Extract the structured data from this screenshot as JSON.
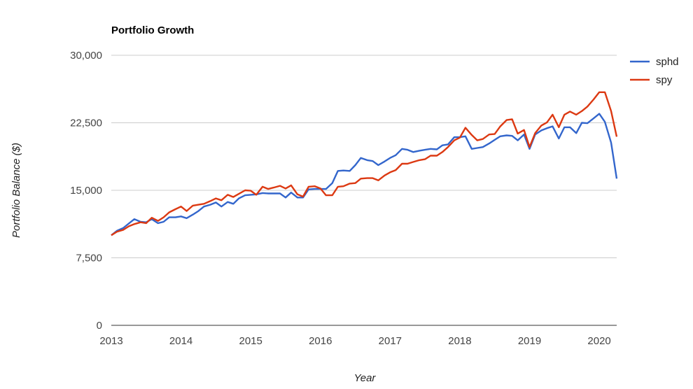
{
  "chart_data": {
    "type": "line",
    "title": "Portfolio Growth",
    "xlabel": "Year",
    "ylabel": "Portfolio Balance ($)",
    "xlim": [
      2013.0,
      2020.25
    ],
    "ylim": [
      0,
      30000
    ],
    "y_ticks": [
      0,
      7500,
      15000,
      22500,
      30000
    ],
    "y_tick_labels": [
      "0",
      "7,500",
      "15,000",
      "22,500",
      "30,000"
    ],
    "x_ticks": [
      2013,
      2014,
      2015,
      2016,
      2017,
      2018,
      2019,
      2020
    ],
    "x_tick_labels": [
      "2013",
      "2014",
      "2015",
      "2016",
      "2017",
      "2018",
      "2019",
      "2020"
    ],
    "grid": true,
    "legend_position": "right",
    "series": [
      {
        "name": "sphd",
        "color": "#3366cc",
        "points": [
          [
            2013.0,
            10000
          ],
          [
            2013.08,
            10500
          ],
          [
            2013.17,
            10800
          ],
          [
            2013.25,
            11300
          ],
          [
            2013.33,
            11800
          ],
          [
            2013.42,
            11500
          ],
          [
            2013.5,
            11450
          ],
          [
            2013.58,
            11800
          ],
          [
            2013.67,
            11350
          ],
          [
            2013.75,
            11500
          ],
          [
            2013.83,
            12000
          ],
          [
            2013.92,
            12000
          ],
          [
            2014.0,
            12100
          ],
          [
            2014.08,
            11900
          ],
          [
            2014.17,
            12300
          ],
          [
            2014.25,
            12700
          ],
          [
            2014.33,
            13200
          ],
          [
            2014.42,
            13400
          ],
          [
            2014.5,
            13650
          ],
          [
            2014.58,
            13200
          ],
          [
            2014.67,
            13700
          ],
          [
            2014.75,
            13500
          ],
          [
            2014.83,
            14100
          ],
          [
            2014.92,
            14450
          ],
          [
            2015.0,
            14500
          ],
          [
            2015.08,
            14550
          ],
          [
            2015.17,
            14700
          ],
          [
            2015.25,
            14650
          ],
          [
            2015.33,
            14650
          ],
          [
            2015.42,
            14650
          ],
          [
            2015.5,
            14200
          ],
          [
            2015.58,
            14750
          ],
          [
            2015.67,
            14200
          ],
          [
            2015.75,
            14200
          ],
          [
            2015.83,
            15100
          ],
          [
            2015.92,
            15150
          ],
          [
            2016.0,
            15150
          ],
          [
            2016.08,
            15150
          ],
          [
            2016.17,
            15800
          ],
          [
            2016.25,
            17150
          ],
          [
            2016.33,
            17200
          ],
          [
            2016.42,
            17150
          ],
          [
            2016.5,
            17800
          ],
          [
            2016.58,
            18600
          ],
          [
            2016.67,
            18350
          ],
          [
            2016.75,
            18250
          ],
          [
            2016.83,
            17800
          ],
          [
            2016.92,
            18200
          ],
          [
            2017.0,
            18600
          ],
          [
            2017.08,
            18900
          ],
          [
            2017.17,
            19600
          ],
          [
            2017.25,
            19500
          ],
          [
            2017.33,
            19250
          ],
          [
            2017.42,
            19400
          ],
          [
            2017.5,
            19500
          ],
          [
            2017.58,
            19600
          ],
          [
            2017.67,
            19550
          ],
          [
            2017.75,
            20000
          ],
          [
            2017.83,
            20100
          ],
          [
            2017.92,
            20900
          ],
          [
            2018.0,
            20900
          ],
          [
            2018.08,
            21000
          ],
          [
            2018.17,
            19600
          ],
          [
            2018.25,
            19700
          ],
          [
            2018.33,
            19800
          ],
          [
            2018.42,
            20200
          ],
          [
            2018.5,
            20600
          ],
          [
            2018.58,
            21000
          ],
          [
            2018.67,
            21100
          ],
          [
            2018.75,
            21050
          ],
          [
            2018.83,
            20550
          ],
          [
            2018.92,
            21200
          ],
          [
            2019.0,
            19600
          ],
          [
            2019.08,
            21200
          ],
          [
            2019.17,
            21650
          ],
          [
            2019.25,
            21900
          ],
          [
            2019.33,
            22100
          ],
          [
            2019.42,
            20750
          ],
          [
            2019.5,
            22000
          ],
          [
            2019.58,
            22000
          ],
          [
            2019.67,
            21350
          ],
          [
            2019.75,
            22500
          ],
          [
            2019.83,
            22450
          ],
          [
            2019.92,
            23000
          ],
          [
            2020.0,
            23500
          ],
          [
            2020.08,
            22600
          ],
          [
            2020.17,
            20300
          ],
          [
            2020.25,
            16300
          ]
        ]
      },
      {
        "name": "spy",
        "color": "#dc3912",
        "points": [
          [
            2013.0,
            10000
          ],
          [
            2013.08,
            10400
          ],
          [
            2013.17,
            10600
          ],
          [
            2013.25,
            11000
          ],
          [
            2013.33,
            11250
          ],
          [
            2013.42,
            11450
          ],
          [
            2013.5,
            11350
          ],
          [
            2013.58,
            11950
          ],
          [
            2013.67,
            11600
          ],
          [
            2013.75,
            12000
          ],
          [
            2013.83,
            12550
          ],
          [
            2013.92,
            12900
          ],
          [
            2014.0,
            13200
          ],
          [
            2014.08,
            12700
          ],
          [
            2014.17,
            13300
          ],
          [
            2014.25,
            13400
          ],
          [
            2014.33,
            13500
          ],
          [
            2014.42,
            13800
          ],
          [
            2014.5,
            14100
          ],
          [
            2014.58,
            13900
          ],
          [
            2014.67,
            14500
          ],
          [
            2014.75,
            14250
          ],
          [
            2014.83,
            14600
          ],
          [
            2014.92,
            15000
          ],
          [
            2015.0,
            14950
          ],
          [
            2015.08,
            14500
          ],
          [
            2015.17,
            15400
          ],
          [
            2015.25,
            15150
          ],
          [
            2015.33,
            15300
          ],
          [
            2015.42,
            15500
          ],
          [
            2015.5,
            15200
          ],
          [
            2015.58,
            15550
          ],
          [
            2015.67,
            14550
          ],
          [
            2015.75,
            14300
          ],
          [
            2015.83,
            15400
          ],
          [
            2015.92,
            15450
          ],
          [
            2016.0,
            15200
          ],
          [
            2016.08,
            14450
          ],
          [
            2016.17,
            14450
          ],
          [
            2016.25,
            15400
          ],
          [
            2016.33,
            15450
          ],
          [
            2016.42,
            15750
          ],
          [
            2016.5,
            15800
          ],
          [
            2016.58,
            16300
          ],
          [
            2016.67,
            16350
          ],
          [
            2016.75,
            16350
          ],
          [
            2016.83,
            16100
          ],
          [
            2016.92,
            16650
          ],
          [
            2017.0,
            17000
          ],
          [
            2017.08,
            17250
          ],
          [
            2017.17,
            17950
          ],
          [
            2017.25,
            17950
          ],
          [
            2017.33,
            18150
          ],
          [
            2017.42,
            18350
          ],
          [
            2017.5,
            18450
          ],
          [
            2017.58,
            18850
          ],
          [
            2017.67,
            18850
          ],
          [
            2017.75,
            19250
          ],
          [
            2017.83,
            19800
          ],
          [
            2017.92,
            20550
          ],
          [
            2018.0,
            20850
          ],
          [
            2018.08,
            21950
          ],
          [
            2018.17,
            21150
          ],
          [
            2018.25,
            20550
          ],
          [
            2018.33,
            20700
          ],
          [
            2018.42,
            21200
          ],
          [
            2018.5,
            21250
          ],
          [
            2018.58,
            22100
          ],
          [
            2018.67,
            22800
          ],
          [
            2018.75,
            22900
          ],
          [
            2018.83,
            21300
          ],
          [
            2018.92,
            21700
          ],
          [
            2019.0,
            19800
          ],
          [
            2019.08,
            21350
          ],
          [
            2019.17,
            22200
          ],
          [
            2019.25,
            22550
          ],
          [
            2019.33,
            23400
          ],
          [
            2019.42,
            22000
          ],
          [
            2019.5,
            23400
          ],
          [
            2019.58,
            23750
          ],
          [
            2019.67,
            23400
          ],
          [
            2019.75,
            23800
          ],
          [
            2019.83,
            24300
          ],
          [
            2019.92,
            25100
          ],
          [
            2020.0,
            25900
          ],
          [
            2020.08,
            25900
          ],
          [
            2020.17,
            23800
          ],
          [
            2020.25,
            20950
          ]
        ]
      }
    ]
  }
}
